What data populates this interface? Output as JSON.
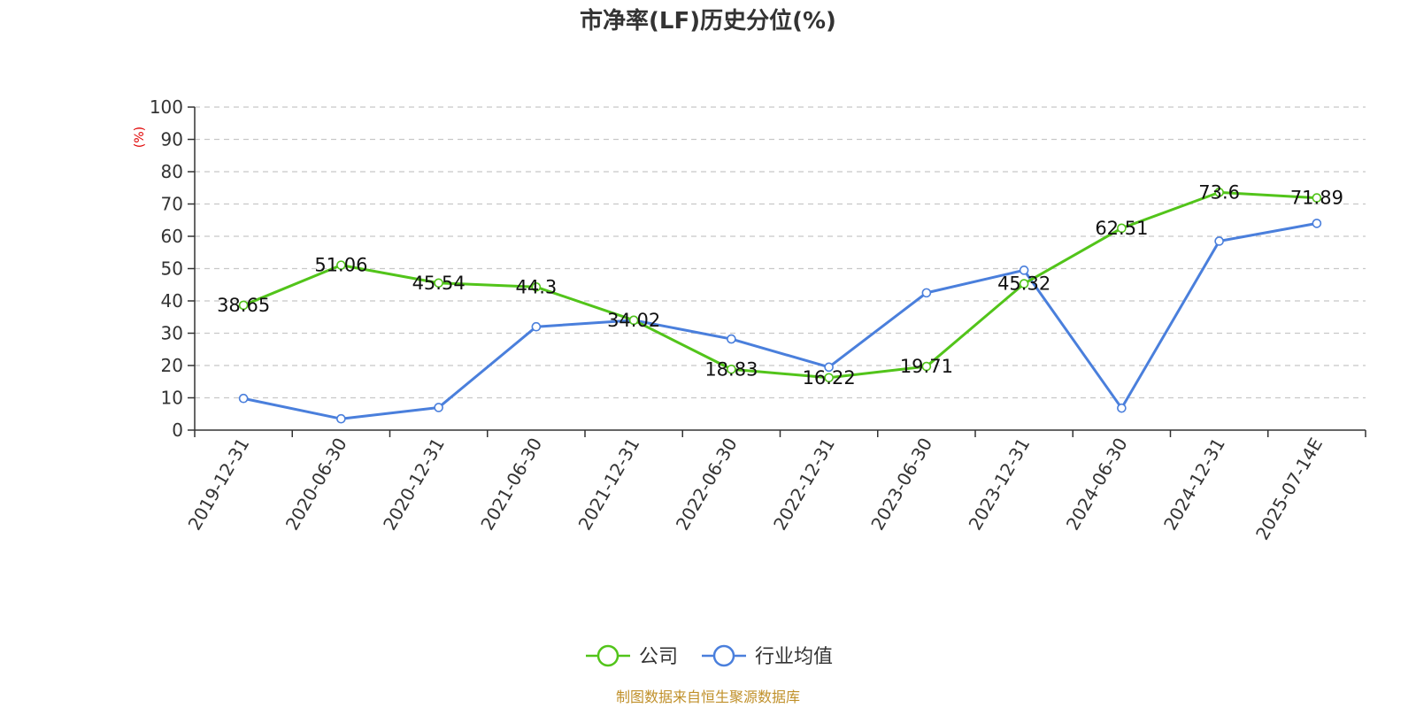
{
  "chart_data": {
    "type": "line",
    "title": "市净率(LF)历史分位(%)",
    "ylabel": "(%)",
    "xlabel": "",
    "ylim": [
      0,
      100
    ],
    "yticks": [
      0,
      10,
      20,
      30,
      40,
      50,
      60,
      70,
      80,
      90,
      100
    ],
    "grid": true,
    "legend_position": "bottom",
    "categories": [
      "2019-12-31",
      "2020-06-30",
      "2020-12-31",
      "2021-06-30",
      "2021-12-31",
      "2022-06-30",
      "2022-12-31",
      "2023-06-30",
      "2023-12-31",
      "2024-06-30",
      "2024-12-31",
      "2025-07-14E"
    ],
    "series": [
      {
        "name": "公司",
        "color": "#52c41a",
        "values": [
          38.65,
          51.06,
          45.54,
          44.3,
          34.02,
          18.83,
          16.22,
          19.71,
          45.32,
          62.51,
          73.6,
          71.89
        ],
        "labels": [
          "38.65",
          "51.06",
          "45.54",
          "44.3",
          "34.02",
          "18.83",
          "16.22",
          "19.71",
          "45.32",
          "62.51",
          "73.6",
          "71.89"
        ]
      },
      {
        "name": "行业均值",
        "color": "#4a7fdc",
        "values": [
          9.8,
          3.5,
          7.0,
          32.0,
          34.0,
          28.2,
          19.5,
          42.5,
          49.5,
          6.8,
          58.5,
          64.0
        ]
      }
    ],
    "source": "制图数据来自恒生聚源数据库"
  }
}
